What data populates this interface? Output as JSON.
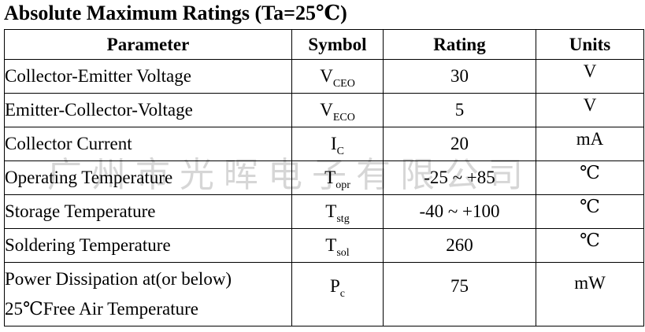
{
  "title": "Absolute Maximum Ratings (Ta=25℃)",
  "headers": {
    "parameter": "Parameter",
    "symbol": "Symbol",
    "rating": "Rating",
    "units": "Units"
  },
  "rows": [
    {
      "parameter": "Collector-Emitter Voltage",
      "symbol_main": "V",
      "symbol_sub": "CEO",
      "rating": "30",
      "unit": "V"
    },
    {
      "parameter": "Emitter-Collector-Voltage",
      "symbol_main": "V",
      "symbol_sub": "ECO",
      "rating": "5",
      "unit": "V"
    },
    {
      "parameter": "Collector Current",
      "symbol_main": "I",
      "symbol_sub": "C",
      "rating": "20",
      "unit": "mA"
    },
    {
      "parameter": "Operating Temperature",
      "symbol_main": "T",
      "symbol_sub": "opr",
      "rating": "-25 ~ +85",
      "unit": "℃"
    },
    {
      "parameter": "Storage Temperature",
      "symbol_main": "T",
      "symbol_sub": "stg",
      "rating": "-40 ~ +100",
      "unit": "℃"
    },
    {
      "parameter": "Soldering Temperature",
      "symbol_main": "T",
      "symbol_sub": "sol",
      "rating": "260",
      "unit": "℃"
    },
    {
      "parameter_line1": "Power Dissipation at(or below)",
      "parameter_line2": "25℃Free Air Temperature",
      "symbol_main": "P",
      "symbol_sub": "c",
      "rating": "75",
      "unit": "mW"
    }
  ],
  "watermark": "广州市光晖电子有限公司"
}
